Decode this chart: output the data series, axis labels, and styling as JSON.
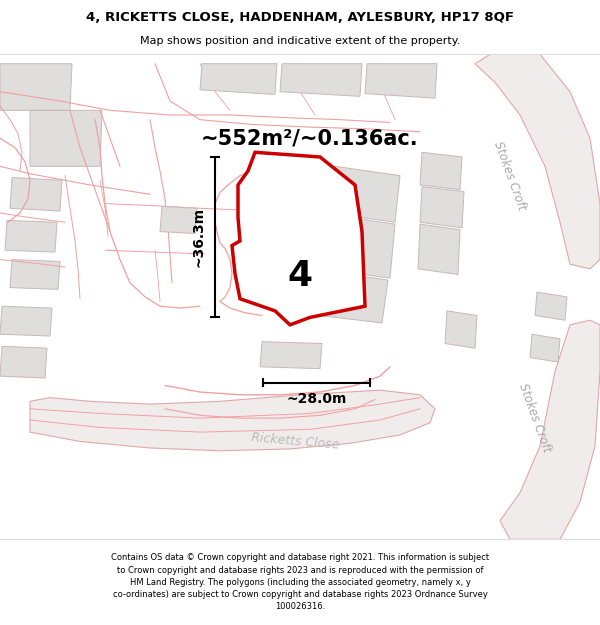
{
  "title_line1": "4, RICKETTS CLOSE, HADDENHAM, AYLESBURY, HP17 8QF",
  "title_line2": "Map shows position and indicative extent of the property.",
  "area_text": "~552m²/~0.136ac.",
  "label_number": "4",
  "dim_width": "~28.0m",
  "dim_height": "~36.3m",
  "road_label1": "Stokes Croft",
  "road_label2": "Stokes Croft",
  "road_label3": "Ricketts Close",
  "footer_lines": [
    "Contains OS data © Crown copyright and database right 2021. This information is subject",
    "to Crown copyright and database rights 2023 and is reproduced with the permission of",
    "HM Land Registry. The polygons (including the associated geometry, namely x, y",
    "co-ordinates) are subject to Crown copyright and database rights 2023 Ordnance Survey",
    "100026316."
  ],
  "map_bg": "#f7f4f4",
  "property_stroke": "#cc0000",
  "road_line_color": "#f0a0a0",
  "building_fill": "#e0dddd",
  "building_edge": "#c8b8b8",
  "dim_color": "#111111",
  "white": "#ffffff",
  "road_area_fill": "#f0ecec",
  "road_area_edge": "#e0a8a8"
}
